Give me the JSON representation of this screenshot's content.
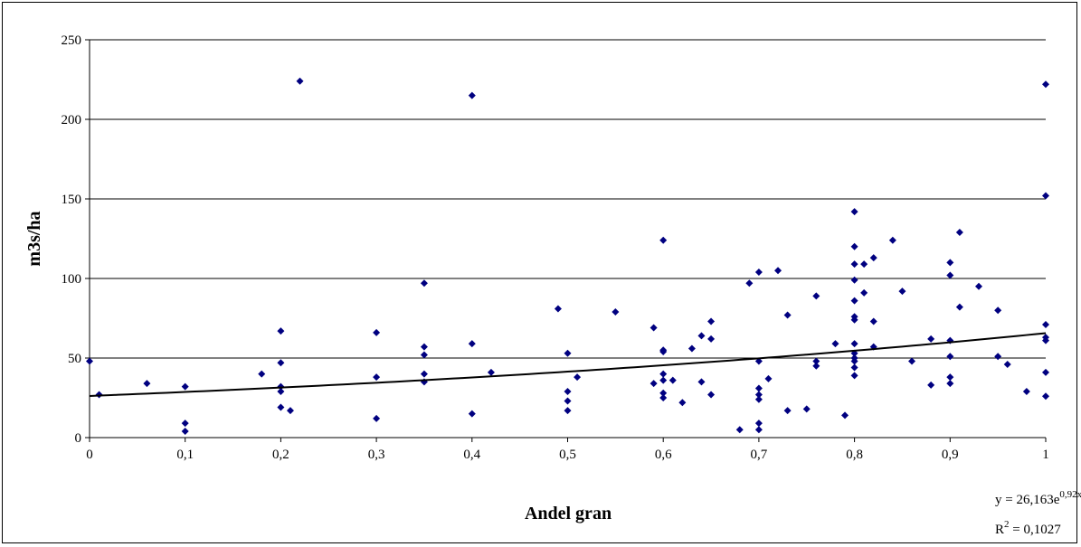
{
  "chart_data": {
    "type": "scatter",
    "title": "",
    "xlabel": "Andel gran",
    "ylabel": "m3s/ha",
    "xlim": [
      0,
      1
    ],
    "ylim": [
      0,
      250
    ],
    "x_ticks": [
      "0",
      "0,1",
      "0,2",
      "0,3",
      "0,4",
      "0,5",
      "0,6",
      "0,7",
      "0,8",
      "0,9",
      "1"
    ],
    "y_ticks": [
      "0",
      "50",
      "100",
      "150",
      "200",
      "250"
    ],
    "grid": "horizontal",
    "marker_color": "#000080",
    "trendline_color": "#000000",
    "trendline": {
      "type": "exponential",
      "a": 26.163,
      "b": 0.92,
      "equation_prefix": "y = 26,163e",
      "equation_exponent": "0,92x",
      "r2_prefix": "R",
      "r2_exponent": "2",
      "r2_suffix": " = 0,1027"
    },
    "points": [
      [
        0.0,
        48
      ],
      [
        0.01,
        27
      ],
      [
        0.06,
        34
      ],
      [
        0.1,
        32
      ],
      [
        0.1,
        9
      ],
      [
        0.1,
        4
      ],
      [
        0.18,
        40
      ],
      [
        0.2,
        67
      ],
      [
        0.2,
        47
      ],
      [
        0.2,
        32
      ],
      [
        0.2,
        29
      ],
      [
        0.2,
        19
      ],
      [
        0.21,
        17
      ],
      [
        0.22,
        224
      ],
      [
        0.3,
        66
      ],
      [
        0.3,
        38
      ],
      [
        0.3,
        12
      ],
      [
        0.35,
        97
      ],
      [
        0.35,
        57
      ],
      [
        0.35,
        52
      ],
      [
        0.35,
        40
      ],
      [
        0.35,
        35
      ],
      [
        0.4,
        215
      ],
      [
        0.4,
        59
      ],
      [
        0.4,
        15
      ],
      [
        0.42,
        41
      ],
      [
        0.49,
        81
      ],
      [
        0.5,
        53
      ],
      [
        0.5,
        29
      ],
      [
        0.5,
        23
      ],
      [
        0.5,
        17
      ],
      [
        0.51,
        38
      ],
      [
        0.55,
        79
      ],
      [
        0.59,
        69
      ],
      [
        0.59,
        34
      ],
      [
        0.6,
        124
      ],
      [
        0.6,
        55
      ],
      [
        0.6,
        54
      ],
      [
        0.6,
        40
      ],
      [
        0.6,
        36
      ],
      [
        0.6,
        28
      ],
      [
        0.6,
        25
      ],
      [
        0.61,
        36
      ],
      [
        0.62,
        22
      ],
      [
        0.63,
        56
      ],
      [
        0.64,
        64
      ],
      [
        0.64,
        35
      ],
      [
        0.65,
        73
      ],
      [
        0.65,
        62
      ],
      [
        0.65,
        27
      ],
      [
        0.68,
        5
      ],
      [
        0.69,
        97
      ],
      [
        0.7,
        104
      ],
      [
        0.7,
        48
      ],
      [
        0.7,
        31
      ],
      [
        0.7,
        27
      ],
      [
        0.7,
        24
      ],
      [
        0.7,
        9
      ],
      [
        0.7,
        5
      ],
      [
        0.71,
        37
      ],
      [
        0.72,
        105
      ],
      [
        0.73,
        77
      ],
      [
        0.73,
        17
      ],
      [
        0.75,
        18
      ],
      [
        0.76,
        89
      ],
      [
        0.76,
        48
      ],
      [
        0.76,
        45
      ],
      [
        0.78,
        59
      ],
      [
        0.79,
        14
      ],
      [
        0.8,
        142
      ],
      [
        0.8,
        120
      ],
      [
        0.8,
        109
      ],
      [
        0.8,
        99
      ],
      [
        0.8,
        86
      ],
      [
        0.8,
        76
      ],
      [
        0.8,
        74
      ],
      [
        0.8,
        59
      ],
      [
        0.8,
        53
      ],
      [
        0.8,
        50
      ],
      [
        0.8,
        48
      ],
      [
        0.8,
        44
      ],
      [
        0.8,
        39
      ],
      [
        0.81,
        109
      ],
      [
        0.81,
        91
      ],
      [
        0.82,
        113
      ],
      [
        0.82,
        73
      ],
      [
        0.82,
        57
      ],
      [
        0.84,
        124
      ],
      [
        0.85,
        92
      ],
      [
        0.86,
        48
      ],
      [
        0.88,
        62
      ],
      [
        0.88,
        33
      ],
      [
        0.9,
        110
      ],
      [
        0.9,
        102
      ],
      [
        0.9,
        61
      ],
      [
        0.9,
        51
      ],
      [
        0.9,
        38
      ],
      [
        0.9,
        34
      ],
      [
        0.91,
        129
      ],
      [
        0.91,
        82
      ],
      [
        0.93,
        95
      ],
      [
        0.95,
        80
      ],
      [
        0.95,
        51
      ],
      [
        0.96,
        46
      ],
      [
        0.98,
        29
      ],
      [
        1.0,
        222
      ],
      [
        1.0,
        152
      ],
      [
        1.0,
        71
      ],
      [
        1.0,
        63
      ],
      [
        1.0,
        61
      ],
      [
        1.0,
        41
      ],
      [
        1.0,
        26
      ]
    ]
  }
}
